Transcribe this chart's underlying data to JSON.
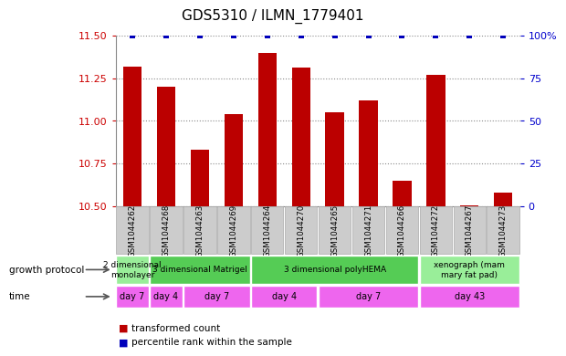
{
  "title": "GDS5310 / ILMN_1779401",
  "samples": [
    "GSM1044262",
    "GSM1044268",
    "GSM1044263",
    "GSM1044269",
    "GSM1044264",
    "GSM1044270",
    "GSM1044265",
    "GSM1044271",
    "GSM1044266",
    "GSM1044272",
    "GSM1044267",
    "GSM1044273"
  ],
  "bar_values": [
    11.32,
    11.2,
    10.83,
    11.04,
    11.4,
    11.31,
    11.05,
    11.12,
    10.65,
    11.27,
    10.505,
    10.58
  ],
  "percentile_values": [
    100,
    100,
    100,
    100,
    100,
    100,
    100,
    100,
    100,
    100,
    100,
    100
  ],
  "bar_color": "#bb0000",
  "percentile_color": "#0000bb",
  "ylim_left": [
    10.5,
    11.5
  ],
  "ylim_right": [
    0,
    100
  ],
  "yticks_left": [
    10.5,
    10.75,
    11.0,
    11.25,
    11.5
  ],
  "yticks_right": [
    0,
    25,
    50,
    75,
    100
  ],
  "growth_protocol_groups": [
    {
      "label": "2 dimensional\nmonolayer",
      "start": 0,
      "end": 1,
      "color": "#99ee99"
    },
    {
      "label": "3 dimensional Matrigel",
      "start": 1,
      "end": 4,
      "color": "#55cc55"
    },
    {
      "label": "3 dimensional polyHEMA",
      "start": 4,
      "end": 9,
      "color": "#55cc55"
    },
    {
      "label": "xenograph (mam\nmary fat pad)",
      "start": 9,
      "end": 12,
      "color": "#99ee99"
    }
  ],
  "time_groups": [
    {
      "label": "day 7",
      "start": 0,
      "end": 1
    },
    {
      "label": "day 4",
      "start": 1,
      "end": 2
    },
    {
      "label": "day 7",
      "start": 2,
      "end": 4
    },
    {
      "label": "day 4",
      "start": 4,
      "end": 6
    },
    {
      "label": "day 7",
      "start": 6,
      "end": 9
    },
    {
      "label": "day 43",
      "start": 9,
      "end": 12
    }
  ],
  "time_color": "#ee66ee",
  "left_label_color": "#cc0000",
  "right_label_color": "#0000cc",
  "growth_protocol_label": "growth protocol",
  "time_label": "time",
  "legend_items": [
    {
      "label": "transformed count",
      "color": "#bb0000"
    },
    {
      "label": "percentile rank within the sample",
      "color": "#0000bb"
    }
  ],
  "sample_box_color": "#cccccc",
  "sample_box_edge_color": "#aaaaaa"
}
